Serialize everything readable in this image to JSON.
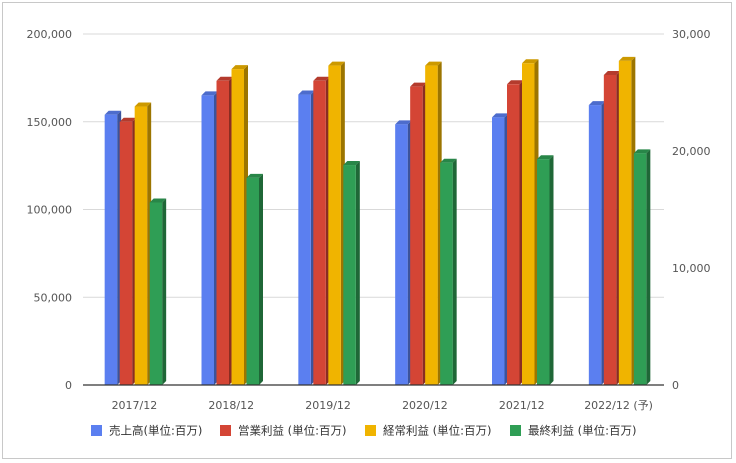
{
  "chart_data": {
    "type": "bar",
    "categories": [
      "2017/12",
      "2018/12",
      "2019/12",
      "2020/12",
      "2021/12",
      "2022/12 (予)"
    ],
    "series": [
      {
        "name": "売上高(単位:百万)",
        "axis": "left",
        "color": "#5b7ff0",
        "values": [
          154000,
          165000,
          165500,
          148500,
          152500,
          159500
        ]
      },
      {
        "name": "営業利益 (単位:百万)",
        "axis": "right",
        "color": "#d44535",
        "values": [
          22500,
          26000,
          26000,
          25500,
          25700,
          26500
        ]
      },
      {
        "name": "経常利益 (単位:百万)",
        "axis": "right",
        "color": "#f0b400",
        "values": [
          23800,
          27000,
          27300,
          27300,
          27500,
          27700
        ]
      },
      {
        "name": "最終利益 (単位:百万)",
        "axis": "right",
        "color": "#2f9e55",
        "values": [
          15600,
          17700,
          18800,
          19000,
          19300,
          19800
        ]
      }
    ],
    "left_axis": {
      "min": 0,
      "max": 200000,
      "ticks": [
        "0",
        "50,000",
        "100,000",
        "150,000",
        "200,000"
      ]
    },
    "right_axis": {
      "min": 0,
      "max": 30000,
      "ticks": [
        "0",
        "10,000",
        "20,000",
        "30,000"
      ]
    },
    "grid": true,
    "legend_position": "bottom",
    "style": "3d-bars"
  }
}
